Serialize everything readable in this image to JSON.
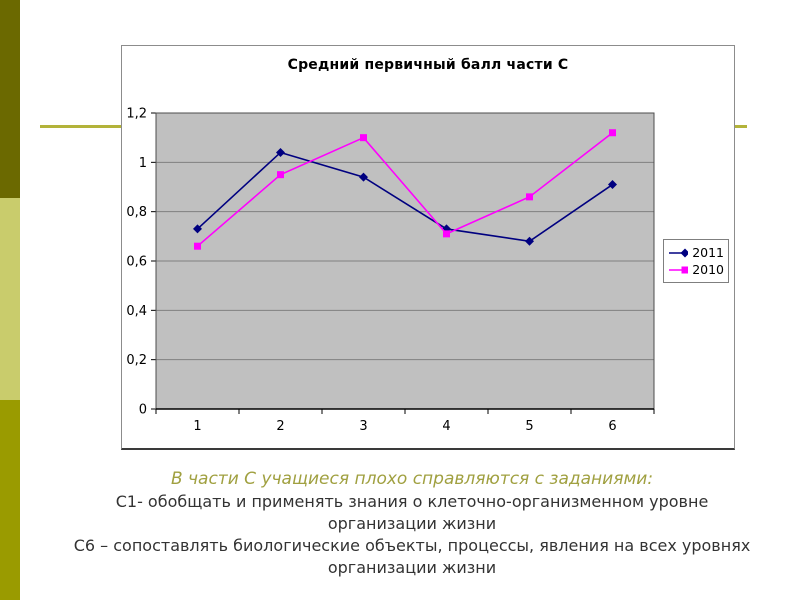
{
  "colors": {
    "accent-dark": "#6b6900",
    "accent-light": "#c9cc6c",
    "accent-olive": "#9a9b00",
    "rule": "#b3b33a",
    "heading": "#a0a040",
    "plot-bg": "#c0c0c0",
    "gridline": "#808080"
  },
  "chart_data": {
    "type": "line",
    "title": "Средний первичный балл части С",
    "categories": [
      "1",
      "2",
      "3",
      "4",
      "5",
      "6"
    ],
    "series": [
      {
        "name": "2011",
        "color": "#000080",
        "marker": "diamond",
        "values": [
          0.73,
          1.04,
          0.94,
          0.73,
          0.68,
          0.91
        ]
      },
      {
        "name": "2010",
        "color": "#ff00ff",
        "marker": "square",
        "values": [
          0.66,
          0.95,
          1.1,
          0.71,
          0.86,
          1.12
        ]
      }
    ],
    "ylim": [
      0,
      1.2
    ],
    "ytick_values": [
      0,
      0.2,
      0.4,
      0.6,
      0.8,
      1,
      1.2
    ],
    "ytick_labels": [
      "0",
      "0,2",
      "0,4",
      "0,6",
      "0,8",
      "1",
      "1,2"
    ],
    "grid": true,
    "legend_position": "right",
    "plot_bg": "#c0c0c0"
  },
  "caption": {
    "heading": "В части С учащиеся плохо справляются с заданиями:",
    "line1": "С1- обобщать и применять знания о клеточно-организменном уровне организации жизни",
    "line2": "С6 – сопоставлять биологические объекты, процессы, явления на всех уровнях организации жизни"
  }
}
